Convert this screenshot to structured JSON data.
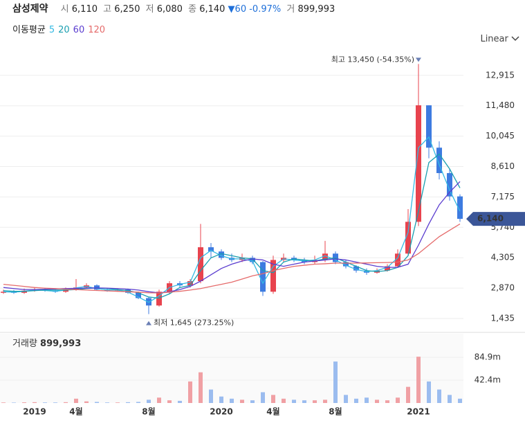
{
  "header": {
    "name": "삼성제약",
    "open_label": "시",
    "open": "6,110",
    "high_label": "고",
    "high": "6,250",
    "low_label": "저",
    "low": "6,080",
    "close_label": "종",
    "close": "6,140",
    "change": "60",
    "change_pct": "-0.97%",
    "volume_label": "거",
    "volume": "899,993"
  },
  "ma_label": "이동평균",
  "scale_mode": "Linear",
  "chart_data": [
    {
      "type": "candlestick",
      "up_color": "#e8434e",
      "down_color": "#3d7be0",
      "categories": [
        null,
        null,
        null,
        "2019",
        null,
        null,
        null,
        "4월",
        null,
        null,
        null,
        null,
        null,
        null,
        "8월",
        null,
        null,
        null,
        null,
        null,
        null,
        "2020",
        null,
        null,
        null,
        null,
        "4월",
        null,
        null,
        null,
        null,
        null,
        "8월",
        null,
        null,
        null,
        null,
        null,
        null,
        null,
        "2021",
        null,
        null,
        null,
        null
      ],
      "open": [
        2650,
        2700,
        2650,
        2750,
        2800,
        2750,
        2700,
        2800,
        2900,
        3000,
        2800,
        2750,
        2800,
        2650,
        2400,
        2050,
        2700,
        3100,
        3000,
        3200,
        4800,
        4600,
        4300,
        4200,
        4300,
        4100,
        2700,
        4200,
        4300,
        4200,
        4100,
        4200,
        4500,
        4100,
        3900,
        3700,
        3600,
        3700,
        3900,
        4500,
        6000,
        11500,
        9500,
        8300,
        7200
      ],
      "high": [
        2800,
        2780,
        2850,
        2900,
        2880,
        2800,
        2900,
        3300,
        3100,
        3050,
        2850,
        2850,
        2850,
        2700,
        2450,
        2800,
        3200,
        3200,
        3300,
        5900,
        5000,
        4700,
        4500,
        4500,
        4400,
        4150,
        4400,
        4500,
        4400,
        4300,
        4400,
        5100,
        4600,
        4200,
        3950,
        3800,
        3800,
        4000,
        4700,
        6600,
        13450,
        11500,
        9800,
        8500,
        7300
      ],
      "low": [
        2600,
        2600,
        2600,
        2700,
        2700,
        2650,
        2650,
        2750,
        2850,
        2750,
        2700,
        2700,
        2600,
        2350,
        1645,
        2000,
        2600,
        2900,
        2900,
        3100,
        4300,
        4200,
        4100,
        4100,
        4000,
        2500,
        2600,
        4100,
        4100,
        4000,
        4000,
        4100,
        4000,
        3800,
        3600,
        3500,
        3550,
        3650,
        3850,
        4400,
        5800,
        9000,
        8000,
        7000,
        6000
      ],
      "close": [
        2700,
        2650,
        2750,
        2800,
        2750,
        2700,
        2800,
        2900,
        3000,
        2800,
        2750,
        2800,
        2650,
        2400,
        2050,
        2700,
        3100,
        3000,
        3200,
        4800,
        4600,
        4300,
        4200,
        4300,
        4100,
        2700,
        4200,
        4300,
        4200,
        4100,
        4200,
        4500,
        4100,
        3900,
        3700,
        3600,
        3700,
        3900,
        4500,
        6000,
        11500,
        9500,
        8300,
        7200,
        6140
      ],
      "series": [
        {
          "name": "5",
          "color": "#33b9e3",
          "values": [
            2700,
            2680,
            2720,
            2780,
            2760,
            2720,
            2780,
            2880,
            2950,
            2850,
            2780,
            2780,
            2680,
            2450,
            2200,
            2500,
            2900,
            3050,
            3150,
            4300,
            4650,
            4400,
            4250,
            4250,
            4150,
            3100,
            3900,
            4250,
            4200,
            4150,
            4200,
            4400,
            4200,
            3950,
            3750,
            3650,
            3700,
            3850,
            4300,
            5500,
            9500,
            10000,
            8700,
            7500,
            6500
          ]
        },
        {
          "name": "20",
          "color": "#1a9fb0",
          "values": [
            2750,
            2720,
            2720,
            2750,
            2780,
            2780,
            2780,
            2800,
            2850,
            2880,
            2850,
            2800,
            2750,
            2650,
            2450,
            2400,
            2600,
            2900,
            3000,
            3700,
            4300,
            4500,
            4400,
            4300,
            4250,
            3700,
            3600,
            4100,
            4250,
            4200,
            4150,
            4250,
            4300,
            4100,
            3900,
            3700,
            3650,
            3700,
            3850,
            4400,
            6500,
            8800,
            9200,
            8500,
            7600
          ]
        },
        {
          "name": "60",
          "color": "#5a3ccf",
          "values": [
            2900,
            2850,
            2800,
            2800,
            2820,
            2830,
            2850,
            2860,
            2870,
            2880,
            2870,
            2850,
            2820,
            2780,
            2700,
            2650,
            2700,
            2800,
            2950,
            3200,
            3500,
            3800,
            4000,
            4150,
            4250,
            4200,
            4000,
            3900,
            4000,
            4100,
            4150,
            4200,
            4250,
            4200,
            4100,
            4000,
            3900,
            3850,
            3850,
            4000,
            4900,
            5900,
            6800,
            7400,
            7900
          ]
        },
        {
          "name": "120",
          "color": "#e56a6a",
          "values": [
            3050,
            3000,
            2950,
            2900,
            2870,
            2850,
            2820,
            2800,
            2780,
            2760,
            2740,
            2720,
            2700,
            2680,
            2650,
            2640,
            2680,
            2720,
            2780,
            2850,
            2950,
            3050,
            3150,
            3300,
            3450,
            3550,
            3700,
            3800,
            3900,
            3950,
            4000,
            4020,
            4050,
            4050,
            4050,
            4060,
            4070,
            4080,
            4100,
            4200,
            4500,
            4900,
            5300,
            5600,
            5900
          ]
        }
      ],
      "ylim": [
        847,
        14183
      ],
      "yticks": [
        {
          "value": 1435,
          "label": "1,435"
        },
        {
          "value": 2870,
          "label": "2,870"
        },
        {
          "value": 4305,
          "label": "4,305"
        },
        {
          "value": 5740,
          "label": "5,740"
        },
        {
          "value": 7175,
          "label": "7,175"
        },
        {
          "value": 8610,
          "label": "8,610"
        },
        {
          "value": 10045,
          "label": "10,045"
        },
        {
          "value": 11480,
          "label": "11,480"
        },
        {
          "value": 12915,
          "label": "12,915"
        }
      ],
      "grid": true,
      "annotations": {
        "max": "최고 13,450 (-54.35%)",
        "min": "최저 1,645 (273.25%)"
      }
    },
    {
      "type": "bar",
      "title": "거래량",
      "title_value": "899,993",
      "values": [
        1,
        0.8,
        1.2,
        1.5,
        1,
        1,
        1.5,
        8,
        3,
        2,
        1,
        1,
        1.5,
        2,
        6,
        10,
        5,
        4,
        40,
        57,
        25,
        12,
        8,
        6,
        5,
        20,
        15,
        8,
        6,
        5,
        5,
        6,
        77,
        15,
        8,
        10,
        6,
        5,
        10,
        30,
        86,
        40,
        25,
        15,
        8
      ],
      "ylim": [
        0,
        128.6
      ],
      "yticks": [
        {
          "value": 42.4,
          "label": "42.4m"
        },
        {
          "value": 84.9,
          "label": "84.9m"
        }
      ],
      "grid": true
    }
  ]
}
